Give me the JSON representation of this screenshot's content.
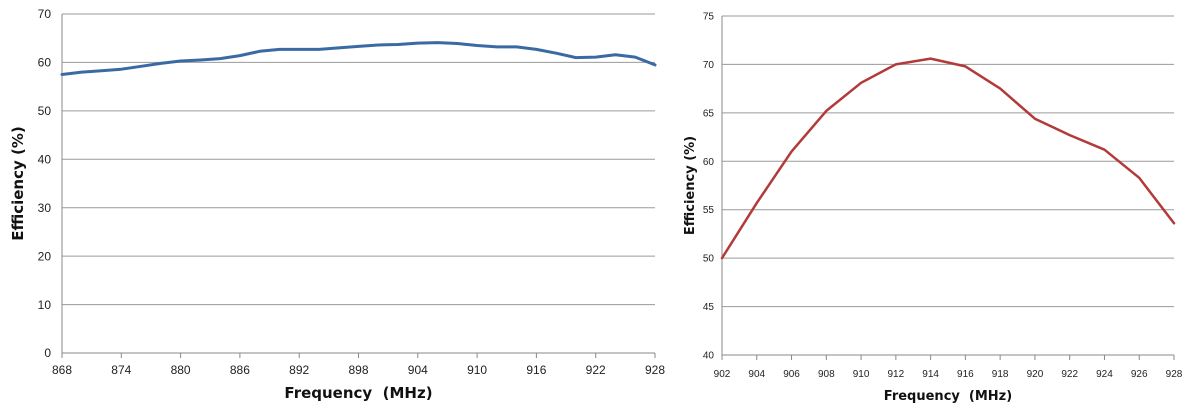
{
  "chart_data": [
    {
      "type": "line",
      "xlabel": "Frequency  (MHz)",
      "ylabel": "Efficiency (%)",
      "x_ticks": [
        868,
        874,
        880,
        886,
        892,
        898,
        904,
        910,
        916,
        922,
        928
      ],
      "y_ticks": [
        0,
        10,
        20,
        30,
        40,
        50,
        60,
        70
      ],
      "xlim": [
        868,
        928
      ],
      "ylim": [
        0,
        70
      ],
      "grid": "horizontal",
      "legend": "none",
      "series": [
        {
          "color": "#3a6aa4",
          "x": [
            868,
            870,
            872,
            874,
            876,
            878,
            880,
            882,
            884,
            886,
            888,
            890,
            892,
            894,
            896,
            898,
            900,
            902,
            904,
            906,
            908,
            910,
            912,
            914,
            916,
            918,
            920,
            922,
            924,
            926,
            928
          ],
          "y": [
            57.5,
            58.0,
            58.3,
            58.6,
            59.2,
            59.8,
            60.3,
            60.5,
            60.8,
            61.4,
            62.3,
            62.7,
            62.7,
            62.7,
            63.0,
            63.3,
            63.6,
            63.7,
            64.0,
            64.1,
            63.9,
            63.5,
            63.2,
            63.2,
            62.7,
            61.9,
            61.0,
            61.1,
            61.6,
            61.1,
            59.5
          ]
        }
      ]
    },
    {
      "type": "line",
      "xlabel": "Frequency  (MHz)",
      "ylabel": "Efficiency (%)",
      "x_ticks": [
        902,
        904,
        906,
        908,
        910,
        912,
        914,
        916,
        918,
        920,
        922,
        924,
        926,
        928
      ],
      "y_ticks": [
        40,
        45,
        50,
        55,
        60,
        65,
        70,
        75
      ],
      "xlim": [
        902,
        928
      ],
      "ylim": [
        40,
        75
      ],
      "grid": "horizontal",
      "legend": "none",
      "series": [
        {
          "color": "#b23a3a",
          "x": [
            902,
            904,
            906,
            908,
            910,
            912,
            914,
            916,
            918,
            920,
            922,
            924,
            926,
            928
          ],
          "y": [
            50.0,
            55.7,
            61.0,
            65.2,
            68.1,
            70.0,
            70.6,
            69.8,
            67.5,
            64.4,
            62.7,
            61.2,
            58.3,
            53.6
          ]
        }
      ]
    }
  ]
}
